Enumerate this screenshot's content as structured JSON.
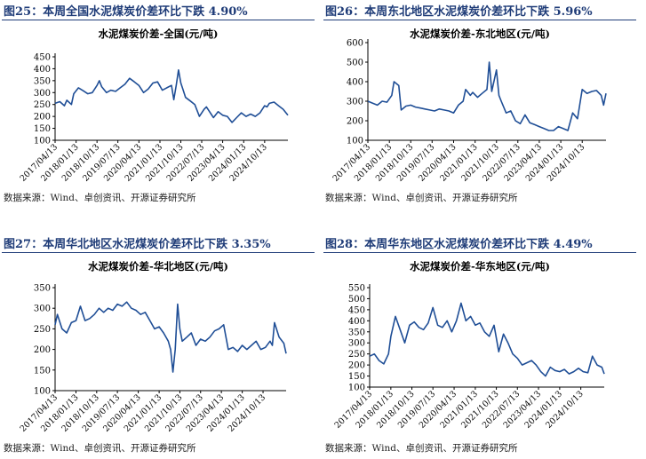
{
  "colors": {
    "accent": "#1F3C78",
    "line": "#1F4E96",
    "axis": "#000000"
  },
  "panels": [
    {
      "fig_title": "图25：本周全国水泥煤炭价差环比下跌 4.90%",
      "source": "数据来源：Wind、卓创资讯、开源证券研究所",
      "chart_data": {
        "type": "line",
        "title": "水泥煤炭价差-全国(元/吨)",
        "ylim": [
          100,
          450
        ],
        "yticks": [
          "450",
          "400",
          "350",
          "300",
          "250",
          "200",
          "150",
          "100"
        ],
        "xlim": [
          "2017/04/13",
          "2025/08/13"
        ],
        "xticks": [
          "2017/04/13",
          "2018/01/13",
          "2018/10/13",
          "2019/07/13",
          "2020/04/13",
          "2021/01/13",
          "2021/10/13",
          "2022/07/13",
          "2023/04/13",
          "2024/01/13",
          "2024/10/13"
        ],
        "grid": false,
        "series": [
          {
            "x": [
              "2017/04/13",
              "2017/06/13",
              "2017/08/13",
              "2017/09/13",
              "2017/11/13",
              "2017/12/13",
              "2018/02/13",
              "2018/04/13",
              "2018/06/13",
              "2018/08/13",
              "2018/10/13",
              "2018/11/13",
              "2018/12/13",
              "2019/02/13",
              "2019/04/13",
              "2019/06/13",
              "2019/08/13",
              "2019/10/13",
              "2019/12/13",
              "2020/02/13",
              "2020/04/13",
              "2020/06/13",
              "2020/08/13",
              "2020/10/13",
              "2020/12/13",
              "2021/02/13",
              "2021/04/13",
              "2021/06/13",
              "2021/07/13",
              "2021/08/13",
              "2021/09/13",
              "2021/10/13",
              "2021/11/13",
              "2021/12/13",
              "2022/02/13",
              "2022/04/13",
              "2022/06/13",
              "2022/08/13",
              "2022/09/13",
              "2022/11/13",
              "2022/12/13",
              "2023/02/13",
              "2023/04/13",
              "2023/06/13",
              "2023/08/13",
              "2023/10/13",
              "2023/12/13",
              "2024/02/13",
              "2024/04/13",
              "2024/06/13",
              "2024/08/13",
              "2024/10/13",
              "2024/11/13",
              "2024/12/13",
              "2025/02/13",
              "2025/04/13",
              "2025/06/13",
              "2025/08/13"
            ],
            "y": [
              255,
              262,
              245,
              268,
              250,
              295,
              320,
              308,
              295,
              300,
              330,
              350,
              325,
              300,
              310,
              305,
              320,
              335,
              360,
              345,
              330,
              300,
              315,
              340,
              345,
              310,
              320,
              330,
              270,
              330,
              395,
              340,
              310,
              280,
              265,
              250,
              200,
              230,
              240,
              210,
              195,
              220,
              205,
              200,
              175,
              195,
              215,
              200,
              210,
              200,
              215,
              245,
              240,
              255,
              260,
              245,
              230,
              205
            ]
          }
        ]
      }
    },
    {
      "fig_title": "图26：本周东北地区水泥煤炭价差环比下跌 5.96%",
      "source": "数据来源：Wind、卓创资讯、开源证券研究所",
      "chart_data": {
        "type": "line",
        "title": "水泥煤炭价差-东北地区(元/吨)",
        "ylim": [
          100,
          600
        ],
        "yticks": [
          "600",
          "500",
          "400",
          "300",
          "200",
          "100"
        ],
        "xlim": [
          "2017/04/13",
          "2025/08/13"
        ],
        "xticks": [
          "2017/04/13",
          "2018/01/13",
          "2018/10/13",
          "2019/07/13",
          "2020/04/13",
          "2021/01/13",
          "2021/10/13",
          "2022/07/13",
          "2023/04/13",
          "2024/01/13",
          "2024/10/13"
        ],
        "grid": false,
        "series": [
          {
            "x": [
              "2017/04/13",
              "2017/06/13",
              "2017/08/13",
              "2017/10/13",
              "2017/12/13",
              "2018/02/13",
              "2018/03/13",
              "2018/05/13",
              "2018/06/13",
              "2018/08/13",
              "2018/10/13",
              "2018/12/13",
              "2019/02/13",
              "2019/04/13",
              "2019/06/13",
              "2019/08/13",
              "2019/10/13",
              "2019/12/13",
              "2020/02/13",
              "2020/04/13",
              "2020/06/13",
              "2020/08/13",
              "2020/09/13",
              "2020/11/13",
              "2020/12/13",
              "2021/02/13",
              "2021/04/13",
              "2021/06/13",
              "2021/07/13",
              "2021/08/13",
              "2021/10/13",
              "2021/11/13",
              "2021/12/13",
              "2022/02/13",
              "2022/04/13",
              "2022/06/13",
              "2022/08/13",
              "2022/10/13",
              "2022/12/13",
              "2023/02/13",
              "2023/04/13",
              "2023/06/13",
              "2023/08/13",
              "2023/10/13",
              "2023/12/13",
              "2024/02/13",
              "2024/04/13",
              "2024/06/13",
              "2024/08/13",
              "2024/10/13",
              "2024/12/13",
              "2025/02/13",
              "2025/04/13",
              "2025/06/13",
              "2025/07/13",
              "2025/08/13"
            ],
            "y": [
              300,
              290,
              280,
              300,
              295,
              330,
              400,
              380,
              255,
              275,
              280,
              270,
              265,
              260,
              255,
              250,
              260,
              255,
              250,
              240,
              280,
              300,
              360,
              330,
              345,
              320,
              340,
              360,
              500,
              350,
              460,
              330,
              300,
              240,
              250,
              200,
              185,
              230,
              190,
              180,
              170,
              160,
              150,
              150,
              170,
              160,
              150,
              240,
              210,
              360,
              340,
              350,
              355,
              330,
              280,
              340
            ]
          }
        ]
      }
    },
    {
      "fig_title": "图27：本周华北地区水泥煤炭价差环比下跌 3.35%",
      "source": "数据来源：Wind、卓创资讯、开源证券研究所",
      "chart_data": {
        "type": "line",
        "title": "水泥煤炭价差-华北地区(元/吨)",
        "ylim": [
          100,
          350
        ],
        "yticks": [
          "350",
          "300",
          "250",
          "200",
          "150",
          "100"
        ],
        "xlim": [
          "2017/04/13",
          "2025/08/13"
        ],
        "xticks": [
          "2017/04/13",
          "2018/01/13",
          "2018/10/13",
          "2019/07/13",
          "2020/04/13",
          "2021/01/13",
          "2021/10/13",
          "2022/07/13",
          "2023/04/13",
          "2024/01/13",
          "2024/10/13"
        ],
        "grid": false,
        "series": [
          {
            "x": [
              "2017/04/13",
              "2017/05/13",
              "2017/07/13",
              "2017/09/13",
              "2017/11/13",
              "2018/01/13",
              "2018/03/13",
              "2018/05/13",
              "2018/07/13",
              "2018/09/13",
              "2018/11/13",
              "2019/01/13",
              "2019/03/13",
              "2019/05/13",
              "2019/07/13",
              "2019/09/13",
              "2019/11/13",
              "2020/01/13",
              "2020/03/13",
              "2020/05/13",
              "2020/07/13",
              "2020/09/13",
              "2020/11/13",
              "2021/01/13",
              "2021/03/13",
              "2021/05/13",
              "2021/06/13",
              "2021/07/13",
              "2021/08/13",
              "2021/09/13",
              "2021/10/13",
              "2021/11/13",
              "2022/01/13",
              "2022/03/13",
              "2022/05/13",
              "2022/07/13",
              "2022/09/13",
              "2022/11/13",
              "2023/01/13",
              "2023/03/13",
              "2023/05/13",
              "2023/07/13",
              "2023/09/13",
              "2023/11/13",
              "2024/01/13",
              "2024/03/13",
              "2024/05/13",
              "2024/07/13",
              "2024/09/13",
              "2024/11/13",
              "2025/01/13",
              "2025/02/13",
              "2025/03/13",
              "2025/05/13",
              "2025/07/13",
              "2025/08/13"
            ],
            "y": [
              260,
              285,
              250,
              240,
              265,
              270,
              305,
              270,
              275,
              285,
              300,
              290,
              300,
              295,
              310,
              305,
              315,
              300,
              295,
              285,
              290,
              270,
              250,
              255,
              240,
              220,
              200,
              145,
              200,
              310,
              250,
              220,
              230,
              240,
              210,
              225,
              220,
              230,
              245,
              250,
              260,
              200,
              205,
              195,
              210,
              200,
              210,
              220,
              200,
              205,
              220,
              210,
              265,
              230,
              215,
              190
            ]
          }
        ]
      }
    },
    {
      "fig_title": "图28：本周华东地区水泥煤炭价差环比下跌 4.49%",
      "source": "数据来源：Wind、卓创资讯、开源证券研究所",
      "chart_data": {
        "type": "line",
        "title": "水泥煤炭价差-华东地区(元/吨)",
        "ylim": [
          100,
          550
        ],
        "yticks": [
          "550",
          "500",
          "450",
          "400",
          "350",
          "300",
          "250",
          "200",
          "150",
          "100"
        ],
        "xlim": [
          "2017/04/13",
          "2025/08/13"
        ],
        "xticks": [
          "2017/04/13",
          "2018/01/13",
          "2018/10/13",
          "2019/07/13",
          "2020/04/13",
          "2021/01/13",
          "2021/10/13",
          "2022/07/13",
          "2023/04/13",
          "2024/01/13",
          "2024/10/13"
        ],
        "grid": false,
        "series": [
          {
            "x": [
              "2017/04/13",
              "2017/06/13",
              "2017/08/13",
              "2017/10/13",
              "2017/12/13",
              "2018/01/13",
              "2018/03/13",
              "2018/05/13",
              "2018/07/13",
              "2018/09/13",
              "2018/11/13",
              "2019/01/13",
              "2019/03/13",
              "2019/05/13",
              "2019/07/13",
              "2019/09/13",
              "2019/11/13",
              "2020/01/13",
              "2020/03/13",
              "2020/05/13",
              "2020/07/13",
              "2020/09/13",
              "2020/11/13",
              "2021/01/13",
              "2021/03/13",
              "2021/05/13",
              "2021/07/13",
              "2021/09/13",
              "2021/11/13",
              "2022/01/13",
              "2022/03/13",
              "2022/05/13",
              "2022/07/13",
              "2022/09/13",
              "2022/11/13",
              "2023/01/13",
              "2023/03/13",
              "2023/05/13",
              "2023/07/13",
              "2023/09/13",
              "2023/11/13",
              "2024/01/13",
              "2024/03/13",
              "2024/05/13",
              "2024/07/13",
              "2024/09/13",
              "2024/11/13",
              "2025/01/13",
              "2025/03/13",
              "2025/05/13",
              "2025/07/13",
              "2025/08/13"
            ],
            "y": [
              240,
              250,
              220,
              205,
              250,
              330,
              420,
              360,
              300,
              380,
              395,
              370,
              360,
              390,
              460,
              380,
              370,
              400,
              350,
              400,
              480,
              400,
              420,
              380,
              390,
              350,
              330,
              380,
              260,
              340,
              300,
              250,
              230,
              200,
              210,
              220,
              200,
              170,
              150,
              190,
              175,
              170,
              180,
              160,
              170,
              185,
              170,
              165,
              240,
              200,
              190,
              160
            ]
          }
        ]
      }
    }
  ]
}
